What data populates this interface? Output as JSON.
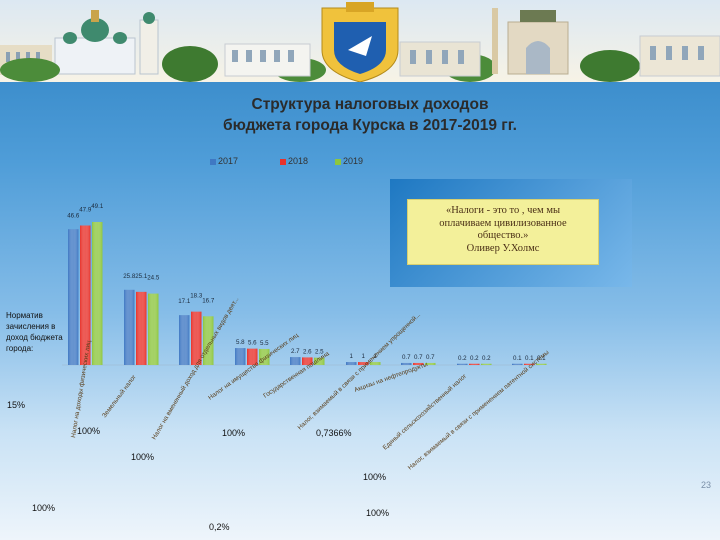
{
  "title_line1": "Структура налоговых доходов",
  "title_line2": "бюджета города Курска в 2017-2019 гг.",
  "quote": {
    "line1": "«Налоги - это то , чем мы",
    "line2": "оплачиваем цивилизованное",
    "line3": "общество.»",
    "line4": "Оливер У.Холмс"
  },
  "norm_label": "Норматив зачисления в доход бюджета города:",
  "page_number": "23",
  "chart_data": {
    "type": "bar",
    "series": [
      {
        "name": "2017",
        "color": "#3f78c3",
        "values": [
          46.6,
          25.8,
          17.1,
          5.8,
          2.7,
          1,
          0.7,
          0.2,
          0.1
        ]
      },
      {
        "name": "2018",
        "color": "#e8322b",
        "values": [
          47.9,
          25.1,
          18.3,
          5.6,
          2.6,
          1,
          0.7,
          0.2,
          0.1
        ]
      },
      {
        "name": "2019",
        "color": "#8dc63f",
        "values": [
          49.1,
          24.5,
          16.7,
          5.5,
          2.5,
          1,
          0.7,
          0.2,
          0.1
        ]
      }
    ],
    "data_labels": [
      [
        "46.6",
        "47.9",
        "49.1"
      ],
      [
        "25.8",
        "25.1",
        "24.5"
      ],
      [
        "17.1",
        "18.3",
        "16.7"
      ],
      [
        "5.8",
        "5.6",
        "5.5"
      ],
      [
        "2.7",
        "2.6",
        "2.5"
      ],
      [
        "1",
        "1",
        "1"
      ],
      [
        "0.7",
        "0.7",
        "0.7"
      ],
      [
        "0.2",
        "0.2",
        "0.2"
      ],
      [
        "0.1",
        "0.1",
        "0.1"
      ]
    ],
    "categories": [
      "Налог на доходы физических лиц",
      "Земельный налог",
      "Налог на вмененный доход для отдельных видов деят...",
      "Налог на имущество физических лиц",
      "Госпошлина",
      "Налог, взимаемый в связи с применением упрощенной...",
      "Акцизы на нефтепродукты",
      "Единый сельскохозяйственный налог",
      "Налог, взимаемый в связи с применением патентной системы налогообложения"
    ],
    "category_labels_shown": [
      "Налог на доходы физических лиц",
      "Земельный налог",
      "Налог на вмененный доход для отдельных видов деят...",
      "Налог на имущество физических лиц",
      "Государственная пошлина",
      "Налог, взимаемый в связи с применением упрощенной...",
      "Акцизы на нефтепродукты",
      "Единый сельскохозяйственный налог",
      "Налог, взимаемый в связи с применением патентной системы"
    ],
    "ylim": [
      0,
      55
    ],
    "grid": false,
    "legend_position": "top",
    "norm_percentages": [
      "15%",
      "100%",
      "100%",
      "100%",
      "0,7366%",
      "100%",
      "100%",
      "100%",
      "0,2%"
    ]
  }
}
